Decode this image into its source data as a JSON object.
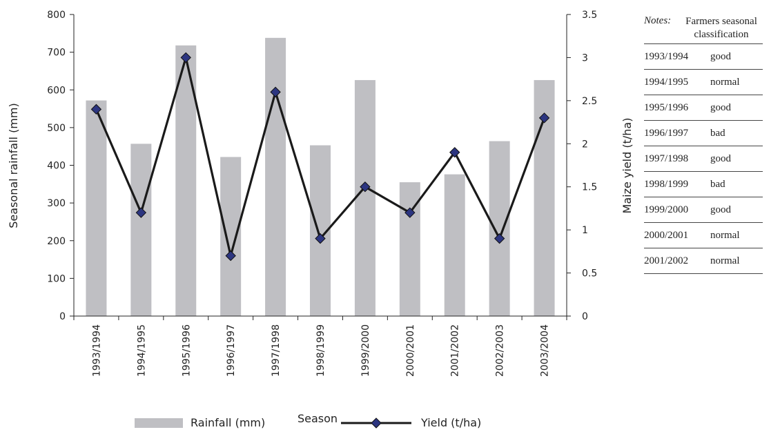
{
  "chart_data": {
    "type": "bar+line",
    "categories": [
      "1993/1994",
      "1994/1995",
      "1995/1996",
      "1996/1997",
      "1997/1998",
      "1998/1999",
      "1999/2000",
      "2000/2001",
      "2001/2002",
      "2002/2003",
      "2003/2004"
    ],
    "series": [
      {
        "name": "Rainfall (mm)",
        "type": "bar",
        "axis": "left",
        "color": "#bfbfc3",
        "values": [
          572,
          457,
          718,
          422,
          738,
          453,
          626,
          355,
          376,
          464,
          626
        ]
      },
      {
        "name": "Yield (t/ha)",
        "type": "line",
        "axis": "right",
        "color": "#1a1a1a",
        "marker_color": "#2c3580",
        "values": [
          2.4,
          1.2,
          3.0,
          0.7,
          2.6,
          0.9,
          1.5,
          1.2,
          1.9,
          0.9,
          2.3
        ]
      }
    ],
    "xlabel": "Season",
    "ylabel_left": "Seasonal rainfall (mm)",
    "ylabel_right": "Maize yield (t/ha)",
    "ylim_left": [
      0,
      800
    ],
    "ylim_right": [
      0,
      3.5
    ],
    "yticks_left": [
      0,
      100,
      200,
      300,
      400,
      500,
      600,
      700,
      800
    ],
    "yticks_right": [
      "0",
      "0.5",
      "1",
      "1.5",
      "2",
      "2.5",
      "3",
      "3.5"
    ],
    "grid": false,
    "legend_position": "bottom"
  },
  "notes": {
    "label": "Notes:",
    "header": "Farmers seasonal classification",
    "rows": [
      {
        "season": "1993/1994",
        "class": "good"
      },
      {
        "season": "1994/1995",
        "class": "normal"
      },
      {
        "season": "1995/1996",
        "class": "good"
      },
      {
        "season": "1996/1997",
        "class": "bad"
      },
      {
        "season": "1997/1998",
        "class": "good"
      },
      {
        "season": "1998/1999",
        "class": "bad"
      },
      {
        "season": "1999/2000",
        "class": "good"
      },
      {
        "season": "2000/2001",
        "class": "normal"
      },
      {
        "season": "2001/2002",
        "class": "normal"
      }
    ]
  }
}
